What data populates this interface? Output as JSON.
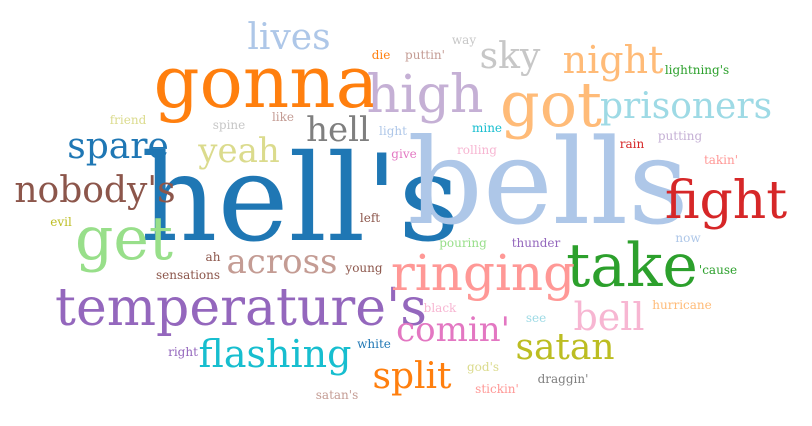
{
  "words": [
    {
      "text": "hell's",
      "color": "#1f77b4"
    },
    {
      "text": "bells",
      "color": "#aec7e8"
    },
    {
      "text": "gonna",
      "color": "#ff7f0e"
    },
    {
      "text": "take",
      "color": "#2ca02c"
    },
    {
      "text": "fight",
      "color": "#d62728"
    },
    {
      "text": "temperature's",
      "color": "#9467bd"
    },
    {
      "text": "ringing",
      "color": "#ff9896"
    },
    {
      "text": "got",
      "color": "#ffbb78"
    },
    {
      "text": "get",
      "color": "#98df8a"
    },
    {
      "text": "high",
      "color": "#c5b0d5"
    },
    {
      "text": "nobody's",
      "color": "#8c564b"
    },
    {
      "text": "prisoners",
      "color": "#9edae5"
    },
    {
      "text": "night",
      "color": "#ffbb78"
    },
    {
      "text": "flashing",
      "color": "#17becf"
    },
    {
      "text": "across",
      "color": "#c49c94"
    },
    {
      "text": "spare",
      "color": "#1f77b4"
    },
    {
      "text": "satan",
      "color": "#bcbd22"
    },
    {
      "text": "bell",
      "color": "#f7b6d2"
    },
    {
      "text": "split",
      "color": "#ff7f0e"
    },
    {
      "text": "comin'",
      "color": "#e377c2"
    },
    {
      "text": "lives",
      "color": "#aec7e8"
    },
    {
      "text": "sky",
      "color": "#c7c7c7"
    },
    {
      "text": "hell",
      "color": "#7f7f7f"
    },
    {
      "text": "yeah",
      "color": "#dbdb8d"
    },
    {
      "text": "lightning's",
      "color": "#2ca02c"
    },
    {
      "text": "putting",
      "color": "#c5b0d5"
    },
    {
      "text": "rain",
      "color": "#d62728"
    },
    {
      "text": "takin'",
      "color": "#ff9896"
    },
    {
      "text": "now",
      "color": "#aec7e8"
    },
    {
      "text": "'cause",
      "color": "#2ca02c"
    },
    {
      "text": "hurricane",
      "color": "#ffbb78"
    },
    {
      "text": "die",
      "color": "#ff7f0e"
    },
    {
      "text": "puttin'",
      "color": "#c49c94"
    },
    {
      "text": "way",
      "color": "#c7c7c7"
    },
    {
      "text": "friend",
      "color": "#dbdb8d"
    },
    {
      "text": "spine",
      "color": "#c7c7c7"
    },
    {
      "text": "like",
      "color": "#c49c94"
    },
    {
      "text": "light",
      "color": "#aec7e8"
    },
    {
      "text": "mine",
      "color": "#17becf"
    },
    {
      "text": "give",
      "color": "#e377c2"
    },
    {
      "text": "rolling",
      "color": "#f7b6d2"
    },
    {
      "text": "evil",
      "color": "#bcbd22"
    },
    {
      "text": "left",
      "color": "#8c564b"
    },
    {
      "text": "ah",
      "color": "#8c564b"
    },
    {
      "text": "sensations",
      "color": "#8c564b"
    },
    {
      "text": "young",
      "color": "#8c564b"
    },
    {
      "text": "pouring",
      "color": "#98df8a"
    },
    {
      "text": "thunder",
      "color": "#9467bd"
    },
    {
      "text": "black",
      "color": "#f7b6d2"
    },
    {
      "text": "see",
      "color": "#9edae5"
    },
    {
      "text": "right",
      "color": "#9467bd"
    },
    {
      "text": "white",
      "color": "#1f77b4"
    },
    {
      "text": "god's",
      "color": "#dbdb8d"
    },
    {
      "text": "stickin'",
      "color": "#ff9896"
    },
    {
      "text": "draggin'",
      "color": "#7f7f7f"
    },
    {
      "text": "satan's",
      "color": "#c49c94"
    }
  ]
}
